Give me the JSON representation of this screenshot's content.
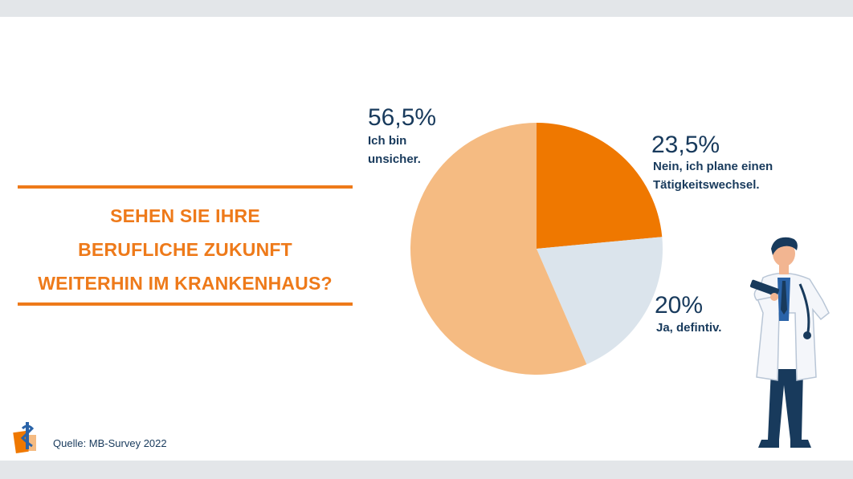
{
  "question": {
    "lines": [
      "SEHEN SIE IHRE",
      "BERUFLICHE ZUKUNFT",
      "WEITERHIN IM KRANKENHAUS?"
    ]
  },
  "source": "Quelle: MB-Survey 2022",
  "colors": {
    "accent": "#ee7a1a",
    "text": "#183a5c",
    "slice_nein": "#ef7800",
    "slice_ja": "#dbe4ec",
    "slice_unsicher": "#f5bb82",
    "frame": "#e3e6e9"
  },
  "chart_data": {
    "type": "pie",
    "start_angle_deg": 0,
    "direction": "clockwise",
    "slices": [
      {
        "key": "nein",
        "value": 23.5,
        "pct_label": "23,5%",
        "label_lines": [
          "Nein, ich plane einen",
          "Tätigkeitswechsel."
        ],
        "color": "#ef7800"
      },
      {
        "key": "ja",
        "value": 20,
        "pct_label": "20%",
        "label_lines": [
          "Ja, defintiv."
        ],
        "color": "#dbe4ec"
      },
      {
        "key": "unsicher",
        "value": 56.5,
        "pct_label": "56,5%",
        "label_lines": [
          "Ich bin",
          "unsicher."
        ],
        "color": "#f5bb82"
      }
    ]
  }
}
